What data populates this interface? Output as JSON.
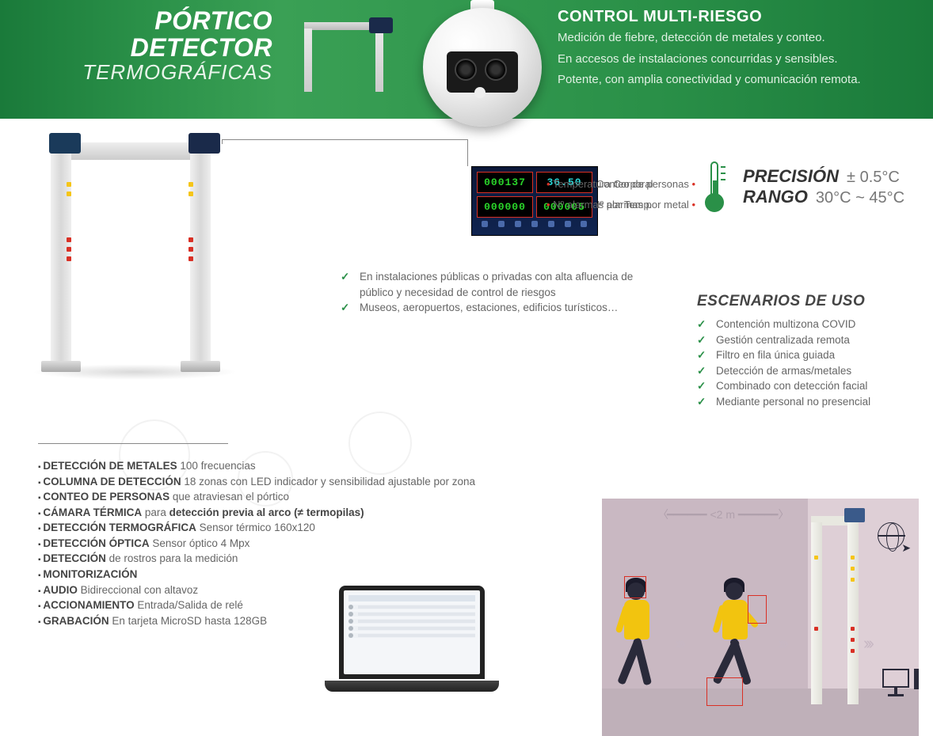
{
  "banner": {
    "title_line1": "PÓRTICO DETECTOR",
    "title_line2": "TERMOGRÁFICAS",
    "subtitle": "CONTROL MULTI-RIESGO",
    "desc1": "Medición de fiebre, detección de metales y conteo.",
    "desc2": "En accesos de instalaciones concurridas y sensibles.",
    "desc3": "Potente, con amplia conectividad y comunicación remota.",
    "bg_gradient": [
      "#1a7a3a",
      "#2a9048",
      "#3aa055"
    ]
  },
  "display": {
    "labels_left": {
      "count": "Conteo de personas",
      "metal": "Nº alarmas por metal"
    },
    "labels_right": {
      "temp": "Temperatura Corporal",
      "temp_alarm": "Nº alarmas por Temp."
    },
    "cells": {
      "count": "000137",
      "temp": "36.50",
      "metal": "000000",
      "temp_alarm": "000005"
    },
    "panel_bg": "#0a1838",
    "cell_border": "#d93025",
    "digit_color": "#2ad62a"
  },
  "precision": {
    "label1": "PRECISIÓN",
    "val1": "± 0.5°C",
    "label2": "RANGO",
    "val2": "30°C ~ 45°C",
    "icon_color": "#2a9048"
  },
  "mid_checks": [
    "En instalaciones públicas o privadas con alta afluencia de público y necesidad de control de riesgos",
    "Museos, aeropuertos, estaciones, edificios turísticos…"
  ],
  "escenarios": {
    "title": "ESCENARIOS DE USO",
    "items": [
      "Contención multizona COVID",
      "Gestión centralizada remota",
      "Filtro en fila única guiada",
      "Detección de armas/metales",
      "Combinado con detección facial",
      "Mediante personal no presencial"
    ]
  },
  "specs": [
    {
      "label": "DETECCIÓN DE METALES",
      "value": "100 frecuencias"
    },
    {
      "label": "COLUMNA DE DETECCIÓN",
      "value": "18 zonas con LED indicador y sensibilidad ajustable por zona"
    },
    {
      "label": "CONTEO DE PERSONAS",
      "value": "que atraviesan el pórtico"
    },
    {
      "label": "CÁMARA TÉRMICA",
      "value": "para",
      "bold2": "detección previa al arco (≠ termopilas)"
    },
    {
      "label": "DETECCIÓN TERMOGRÁFICA",
      "value": "Sensor térmico 160x120"
    },
    {
      "label": "DETECCIÓN ÓPTICA",
      "value": "Sensor óptico 4 Mpx"
    },
    {
      "label": "DETECCIÓN",
      "value": "de rostros para la medición"
    },
    {
      "label": "MONITORIZACIÓN",
      "value": ""
    },
    {
      "label": "AUDIO",
      "value": "Bidireccional con altavoz"
    },
    {
      "label": "ACCIONAMIENTO",
      "value": "Entrada/Salida de relé"
    },
    {
      "label": "GRABACIÓN",
      "value": "En tarjeta MicroSD hasta 128GB"
    }
  ],
  "illustration": {
    "distance_label": "<2 m",
    "bg": "#decfd6",
    "wall": "#c9b8c2",
    "person_top": "#f2c40f",
    "person_dark": "#2a2a3a",
    "redbox": "#d93025",
    "led_y": "#f5c518",
    "led_r": "#d93025"
  },
  "colors": {
    "brand_green": "#2a9048",
    "text": "#555",
    "heading": "#333"
  }
}
